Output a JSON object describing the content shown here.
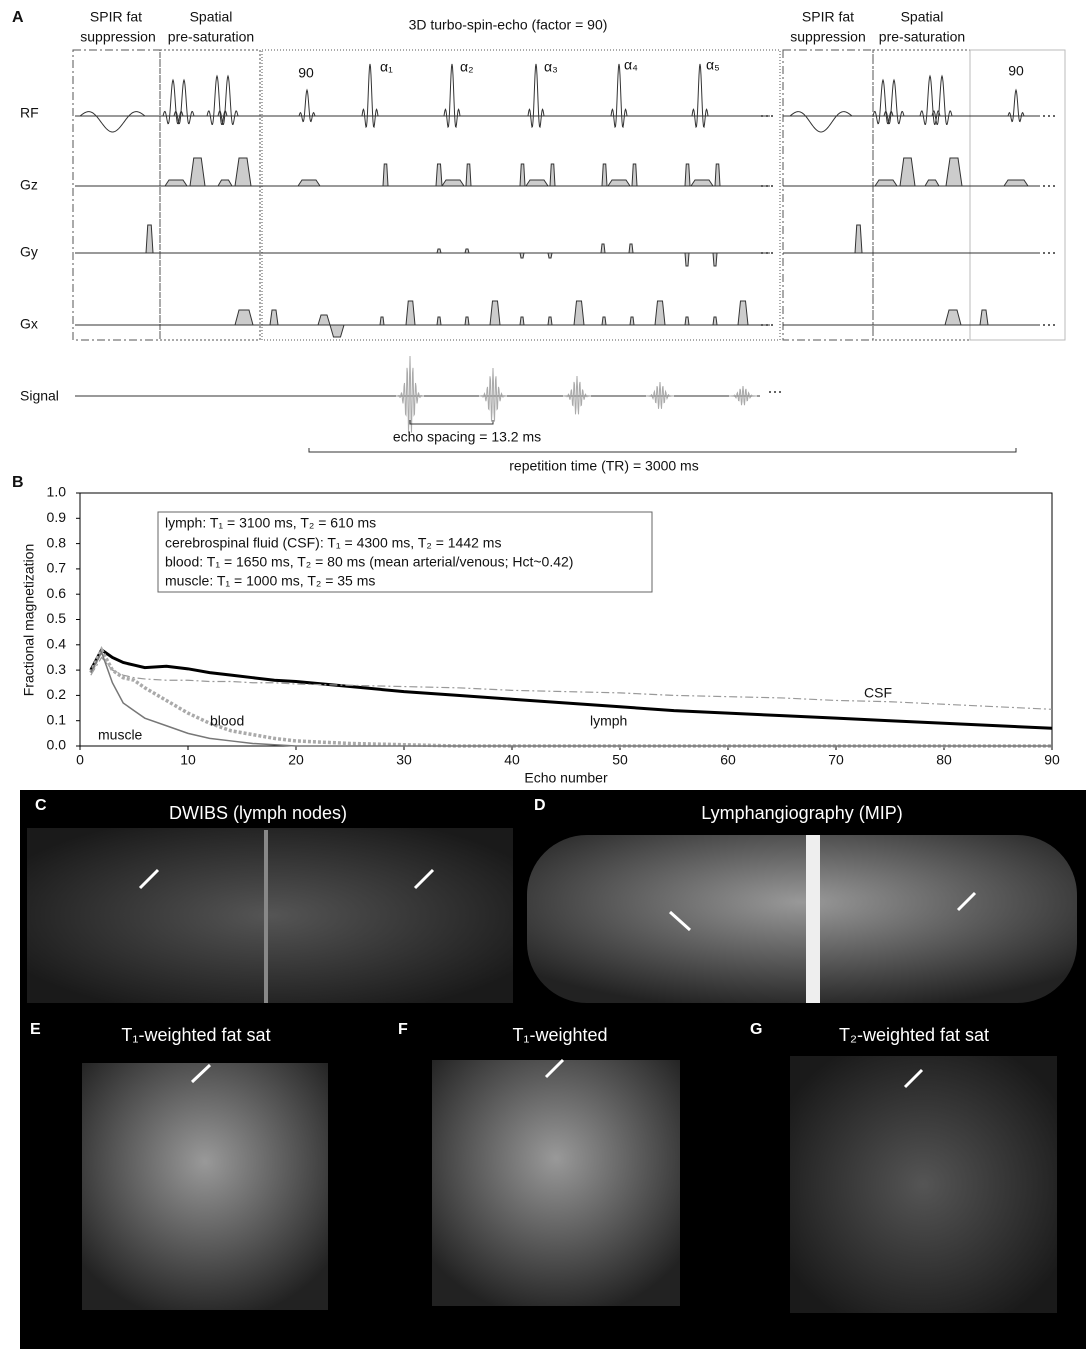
{
  "panel_a": {
    "label": "A",
    "headers": [
      [
        "SPIR fat",
        "suppression"
      ],
      [
        "Spatial",
        "pre-saturation"
      ],
      [
        "3D turbo-spin-echo (factor = 90)"
      ],
      [
        "SPIR fat",
        "suppression"
      ],
      [
        "Spatial",
        "pre-saturation"
      ]
    ],
    "pulse_labels": [
      "90",
      "α₁",
      "α₂",
      "α₃",
      "α₄",
      "α₅",
      "90"
    ],
    "rows": [
      "RF",
      "Gz",
      "Gy",
      "Gx",
      "Signal"
    ],
    "echo_spacing": "echo spacing = 13.2 ms",
    "repetition_time": "repetition time (TR) = 3000 ms"
  },
  "chart_data": {
    "type": "line",
    "panel_label": "B",
    "x_label": "Echo number",
    "y_label": "Fractional magnetization",
    "annotation_box": [
      "lymph: T₁ = 3100 ms, T₂ = 610 ms",
      "cerebrospinal fluid (CSF): T₁ = 4300 ms, T₂ = 1442 ms",
      "blood: T₁ = 1650 ms, T₂ = 80 ms (mean arterial/venous; Hct~0.42)",
      "muscle: T₁ = 1000 ms, T₂ = 35 ms"
    ],
    "x": [
      1,
      2,
      3,
      4,
      5,
      6,
      8,
      10,
      12,
      14,
      16,
      18,
      20,
      25,
      30,
      35,
      40,
      45,
      50,
      55,
      60,
      65,
      70,
      75,
      80,
      85,
      90
    ],
    "series": [
      {
        "name": "lymph",
        "color": "#000000",
        "style": "bold",
        "values": [
          0.3,
          0.38,
          0.35,
          0.33,
          0.32,
          0.31,
          0.315,
          0.305,
          0.29,
          0.28,
          0.27,
          0.26,
          0.255,
          0.235,
          0.215,
          0.2,
          0.185,
          0.17,
          0.155,
          0.14,
          0.13,
          0.12,
          0.11,
          0.1,
          0.09,
          0.08,
          0.07
        ]
      },
      {
        "name": "CSF",
        "color": "#999999",
        "style": "dashdot",
        "values": [
          0.28,
          0.35,
          0.3,
          0.28,
          0.27,
          0.265,
          0.26,
          0.26,
          0.255,
          0.255,
          0.25,
          0.25,
          0.245,
          0.24,
          0.235,
          0.23,
          0.22,
          0.215,
          0.21,
          0.2,
          0.195,
          0.19,
          0.18,
          0.175,
          0.165,
          0.155,
          0.145
        ]
      },
      {
        "name": "blood",
        "color": "#aaaaaa",
        "style": "dotted",
        "values": [
          0.29,
          0.38,
          0.3,
          0.27,
          0.26,
          0.23,
          0.18,
          0.13,
          0.09,
          0.06,
          0.045,
          0.03,
          0.02,
          0.01,
          0.005,
          0,
          0,
          0,
          0,
          0,
          0,
          0,
          0,
          0,
          0,
          0,
          0
        ]
      },
      {
        "name": "muscle",
        "color": "#777777",
        "style": "solid",
        "values": [
          0.29,
          0.37,
          0.25,
          0.17,
          0.14,
          0.11,
          0.08,
          0.05,
          0.03,
          0.02,
          0.01,
          0.005,
          0,
          0,
          0,
          0,
          0,
          0,
          0,
          0,
          0,
          0,
          0,
          0,
          0,
          0,
          0
        ]
      }
    ],
    "xlim": [
      0,
      90
    ],
    "xticks": [
      0,
      10,
      20,
      30,
      40,
      50,
      60,
      70,
      80,
      90
    ],
    "ylim": [
      0,
      1
    ],
    "yticks": [
      {
        "value": 0,
        "label": "0.0"
      },
      0.1,
      0.2,
      0.3,
      0.4,
      0.5,
      0.6,
      0.7,
      0.8,
      0.9,
      {
        "value": 1,
        "label": "1.0"
      }
    ],
    "grid": false
  },
  "images": [
    {
      "label": "C",
      "title": "DWIBS (lymph nodes)"
    },
    {
      "label": "D",
      "title": "Lymphangiography (MIP)"
    },
    {
      "label": "E",
      "title": "T₁-weighted fat sat"
    },
    {
      "label": "F",
      "title": "T₁-weighted"
    },
    {
      "label": "G",
      "title": "T₂-weighted fat sat"
    }
  ]
}
